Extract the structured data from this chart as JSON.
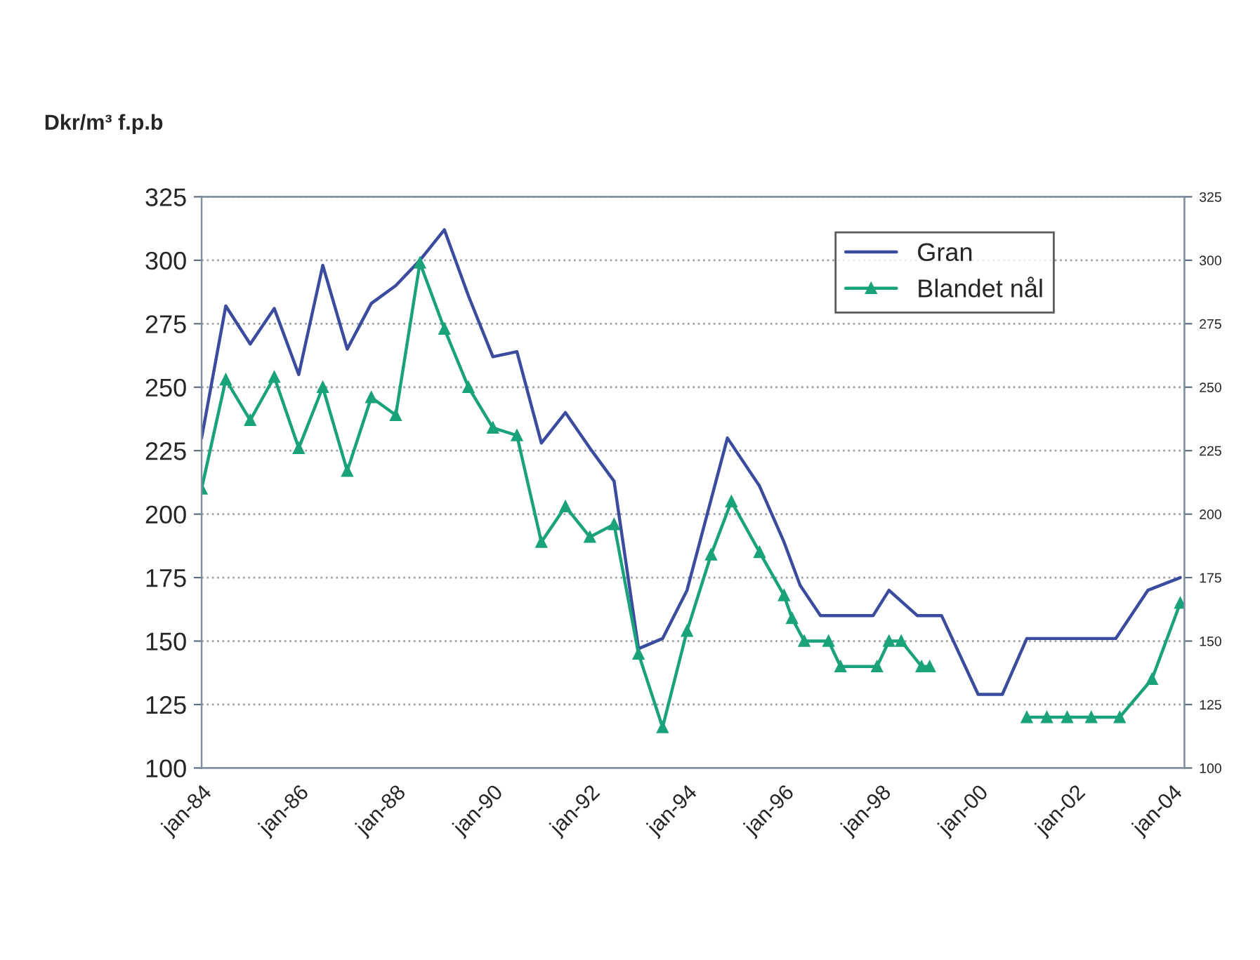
{
  "chart_data": {
    "type": "line",
    "ylabel": "Dkr/m³ f.p.b",
    "xlim": [
      "1984-01",
      "2004-04"
    ],
    "xticks": [
      {
        "value": "1984-01",
        "label": "jan-84"
      },
      {
        "value": "1986-01",
        "label": "jan-86"
      },
      {
        "value": "1988-01",
        "label": "jan-88"
      },
      {
        "value": "1990-01",
        "label": "jan-90"
      },
      {
        "value": "1992-01",
        "label": "jan-92"
      },
      {
        "value": "1994-01",
        "label": "jan-94"
      },
      {
        "value": "1996-01",
        "label": "jan-96"
      },
      {
        "value": "1998-01",
        "label": "jan-98"
      },
      {
        "value": "2000-01",
        "label": "jan-00"
      },
      {
        "value": "2002-01",
        "label": "jan-02"
      },
      {
        "value": "2004-01",
        "label": "jan-04"
      }
    ],
    "ylim": [
      100,
      325
    ],
    "yticks": [
      100,
      125,
      150,
      175,
      200,
      225,
      250,
      275,
      300,
      325
    ],
    "y2lim": [
      100,
      325
    ],
    "y2ticks": [
      100,
      125,
      150,
      175,
      200,
      225,
      250,
      275,
      300,
      325
    ],
    "grid": "y",
    "legend": "top right",
    "series": [
      {
        "name": "Gran",
        "color": "#3b4c9e",
        "marker": "none",
        "x": [
          "1984-01",
          "1984-07",
          "1985-01",
          "1985-07",
          "1986-01",
          "1986-07",
          "1987-01",
          "1987-07",
          "1988-01",
          "1988-07",
          "1989-01",
          "1989-07",
          "1990-01",
          "1990-07",
          "1991-01",
          "1991-07",
          "1992-01",
          "1992-07",
          "1993-01",
          "1993-07",
          "1994-01",
          "1994-11",
          "1995-07",
          "1996-01",
          "1996-05",
          "1996-10",
          "1997-11",
          "1998-03",
          "1998-10",
          "1999-04",
          "2000-01",
          "2000-07",
          "2001-01",
          "2002-11",
          "2003-07",
          "2004-03"
        ],
        "values": [
          230,
          282,
          267,
          281,
          255,
          298,
          265,
          283,
          290,
          300,
          312,
          286,
          262,
          264,
          228,
          240,
          226,
          213,
          147,
          151,
          170,
          230,
          211,
          189,
          172,
          160,
          160,
          170,
          160,
          160,
          129,
          129,
          151,
          151,
          170,
          175
        ]
      },
      {
        "name": "Blandet nål",
        "color": "#1aa37a",
        "marker": "triangle",
        "x": [
          "1984-01",
          "1984-07",
          "1985-01",
          "1985-07",
          "1986-01",
          "1986-07",
          "1987-01",
          "1987-07",
          "1988-01",
          "1988-07",
          "1989-01",
          "1989-07",
          "1990-01",
          "1990-07",
          "1991-01",
          "1991-07",
          "1992-01",
          "1992-07",
          "1993-01",
          "1993-07",
          "1994-01",
          "1994-07",
          "1994-12",
          "1995-07",
          "1996-01",
          "1996-03",
          "1996-06",
          "1996-12",
          "1997-03",
          "1997-12",
          "1998-03",
          "1998-06",
          "1998-11",
          "1999-01",
          "2000-01",
          "2001-01",
          "2001-06",
          "2001-11",
          "2002-05",
          "2002-12",
          "2003-08",
          "2004-03"
        ],
        "values": [
          210,
          253,
          237,
          254,
          226,
          250,
          217,
          246,
          239,
          299,
          273,
          250,
          234,
          231,
          189,
          203,
          191,
          196,
          145,
          116,
          154,
          184,
          205,
          185,
          168,
          159,
          150,
          150,
          140,
          140,
          150,
          150,
          140,
          140,
          null,
          120,
          120,
          120,
          120,
          120,
          135,
          165
        ]
      }
    ]
  }
}
